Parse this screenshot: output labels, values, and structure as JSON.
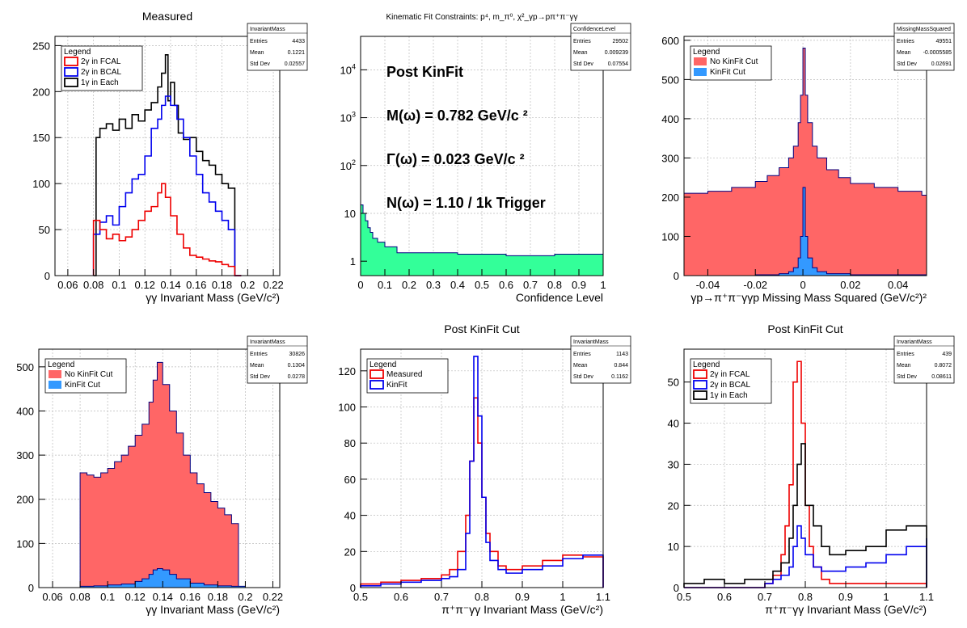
{
  "colors": {
    "red": "#ee0000",
    "blue": "#0000ee",
    "black": "#000000",
    "navy": "#000080",
    "salmon": "#ff6666",
    "azure": "#3399ff",
    "mint": "#33ff99",
    "grid": "#bbbbbb"
  },
  "chart_data": [
    {
      "id": "p1",
      "type": "line",
      "title": "Measured",
      "xlabel": "γγ Invariant Mass (GeV/c²)",
      "ylabel": "",
      "xlim": [
        0.05,
        0.225
      ],
      "ylim": [
        0,
        260
      ],
      "xticks": [
        0.06,
        0.08,
        0.1,
        0.12,
        0.14,
        0.16,
        0.18,
        0.2,
        0.22
      ],
      "yticks": [
        0,
        50,
        100,
        150,
        200,
        250
      ],
      "grid": true,
      "stats": {
        "name": "InvariantMass",
        "rows": [
          [
            "Entries",
            "4433"
          ],
          [
            "Mean",
            "0.1221"
          ],
          [
            "Std Dev",
            "0.02557"
          ]
        ]
      },
      "legend": {
        "title": "Legend",
        "placement": "top-left",
        "items": [
          {
            "label": "2γ in FCAL",
            "color": "red",
            "kind": "line"
          },
          {
            "label": "2γ in BCAL",
            "color": "blue",
            "kind": "line"
          },
          {
            "label": "1γ in Each",
            "color": "black",
            "kind": "line"
          }
        ]
      },
      "series": [
        {
          "name": "1γ in Each",
          "color": "black",
          "x": [
            0.08,
            0.082,
            0.085,
            0.09,
            0.095,
            0.1,
            0.105,
            0.11,
            0.115,
            0.12,
            0.125,
            0.13,
            0.133,
            0.136,
            0.138,
            0.14,
            0.143,
            0.146,
            0.15,
            0.155,
            0.16,
            0.165,
            0.17,
            0.175,
            0.18,
            0.185,
            0.19
          ],
          "values": [
            0,
            150,
            160,
            165,
            158,
            170,
            160,
            175,
            168,
            180,
            188,
            205,
            220,
            240,
            190,
            210,
            185,
            155,
            148,
            150,
            135,
            125,
            120,
            110,
            100,
            95,
            0
          ]
        },
        {
          "name": "2γ in BCAL",
          "color": "blue",
          "x": [
            0.08,
            0.085,
            0.09,
            0.095,
            0.1,
            0.105,
            0.11,
            0.115,
            0.12,
            0.125,
            0.13,
            0.133,
            0.136,
            0.14,
            0.145,
            0.15,
            0.155,
            0.16,
            0.165,
            0.17,
            0.175,
            0.18,
            0.185,
            0.19
          ],
          "values": [
            45,
            58,
            65,
            55,
            75,
            90,
            105,
            110,
            130,
            160,
            170,
            185,
            195,
            185,
            170,
            150,
            130,
            110,
            90,
            80,
            70,
            60,
            50,
            0
          ]
        },
        {
          "name": "2γ in FCAL",
          "color": "red",
          "x": [
            0.08,
            0.085,
            0.09,
            0.095,
            0.1,
            0.105,
            0.11,
            0.115,
            0.12,
            0.125,
            0.13,
            0.133,
            0.136,
            0.14,
            0.145,
            0.15,
            0.155,
            0.16,
            0.165,
            0.17,
            0.175,
            0.18,
            0.185,
            0.19
          ],
          "values": [
            60,
            50,
            40,
            45,
            38,
            42,
            50,
            60,
            70,
            75,
            90,
            100,
            85,
            65,
            45,
            30,
            22,
            20,
            18,
            16,
            15,
            12,
            10,
            0
          ]
        }
      ]
    },
    {
      "id": "p2",
      "type": "area",
      "title": "Kinematic Fit Constraints: p⁴, m_π⁰, χ²_γp→pπ⁺π⁻γγ",
      "xlabel": "Confidence Level",
      "ylabel": "",
      "log_y": true,
      "xlim": [
        0,
        1
      ],
      "ylim": [
        0.5,
        50000
      ],
      "xticks": [
        0,
        0.1,
        0.2,
        0.3,
        0.4,
        0.5,
        0.6,
        0.7,
        0.8,
        0.9,
        1
      ],
      "yticks": [
        1,
        10,
        100,
        1000,
        10000
      ],
      "grid": true,
      "stats": {
        "name": "ConfidenceLevel",
        "rows": [
          [
            "Entries",
            "29502"
          ],
          [
            "Mean",
            "0.009239"
          ],
          [
            "Std Dev",
            "0.07554"
          ]
        ]
      },
      "annotations": [
        "Post KinFit",
        "M(ω) = 0.782 GeV/c ²",
        "Γ(ω) = 0.023 GeV/c ²",
        "N(ω) = 1.10 / 1k Trigger"
      ],
      "series": [
        {
          "name": "",
          "fill": "mint",
          "color": "navy",
          "x": [
            0,
            0.01,
            0.02,
            0.03,
            0.04,
            0.05,
            0.07,
            0.1,
            0.15,
            0.2,
            0.3,
            0.4,
            0.5,
            0.6,
            0.7,
            0.8,
            0.9,
            1.0
          ],
          "values": [
            15,
            10,
            7,
            5,
            4,
            3,
            2.5,
            2,
            1.5,
            1.5,
            1.5,
            1.4,
            1.4,
            1.3,
            1.3,
            1.4,
            1.4,
            1.3
          ]
        }
      ]
    },
    {
      "id": "p3",
      "type": "area",
      "title": "",
      "xlabel": "γp→π⁺π⁻γγp Missing Mass Squared (GeV/c²)²",
      "ylabel": "",
      "xlim": [
        -0.05,
        0.052
      ],
      "ylim": [
        0,
        610
      ],
      "xticks": [
        -0.04,
        -0.02,
        0,
        0.02,
        0.04
      ],
      "yticks": [
        0,
        100,
        200,
        300,
        400,
        500,
        600
      ],
      "grid": true,
      "stats": {
        "name": "MissingMassSquared",
        "rows": [
          [
            "Entries",
            "49551"
          ],
          [
            "Mean",
            "-0.0005585"
          ],
          [
            "Std Dev",
            "0.02691"
          ]
        ]
      },
      "legend": {
        "title": "Legend",
        "placement": "top-left",
        "items": [
          {
            "label": "No KinFit Cut",
            "color": "salmon",
            "kind": "fill"
          },
          {
            "label": "KinFit Cut",
            "color": "azure",
            "kind": "fill"
          }
        ]
      },
      "series": [
        {
          "name": "No KinFit Cut",
          "fill": "salmon",
          "color": "navy",
          "x": [
            -0.05,
            -0.04,
            -0.03,
            -0.02,
            -0.015,
            -0.01,
            -0.006,
            -0.004,
            -0.002,
            -0.001,
            0,
            0.001,
            0.002,
            0.004,
            0.006,
            0.01,
            0.015,
            0.02,
            0.03,
            0.04,
            0.05,
            0.052
          ],
          "values": [
            210,
            215,
            225,
            240,
            255,
            275,
            300,
            330,
            390,
            460,
            580,
            460,
            390,
            330,
            300,
            270,
            250,
            235,
            225,
            215,
            205,
            205
          ]
        },
        {
          "name": "KinFit Cut",
          "fill": "azure",
          "color": "navy",
          "x": [
            -0.05,
            -0.02,
            -0.01,
            -0.006,
            -0.004,
            -0.002,
            -0.001,
            0,
            0.001,
            0.002,
            0.004,
            0.006,
            0.01,
            0.02,
            0.052
          ],
          "values": [
            0,
            2,
            5,
            10,
            20,
            45,
            100,
            225,
            100,
            45,
            20,
            10,
            5,
            2,
            0
          ]
        }
      ]
    },
    {
      "id": "p4",
      "type": "area",
      "title": "",
      "xlabel": "γγ Invariant Mass (GeV/c²)",
      "ylabel": "",
      "xlim": [
        0.05,
        0.225
      ],
      "ylim": [
        0,
        540
      ],
      "xticks": [
        0.06,
        0.08,
        0.1,
        0.12,
        0.14,
        0.16,
        0.18,
        0.2,
        0.22
      ],
      "yticks": [
        0,
        100,
        200,
        300,
        400,
        500
      ],
      "grid": true,
      "stats": {
        "name": "InvariantMass",
        "rows": [
          [
            "Entries",
            "30826"
          ],
          [
            "Mean",
            "0.1304"
          ],
          [
            "Std Dev",
            "0.0278"
          ]
        ]
      },
      "legend": {
        "title": "Legend",
        "placement": "top-left",
        "items": [
          {
            "label": "No KinFit Cut",
            "color": "salmon",
            "kind": "fill"
          },
          {
            "label": "KinFit Cut",
            "color": "azure",
            "kind": "fill"
          }
        ]
      },
      "series": [
        {
          "name": "No KinFit Cut",
          "fill": "salmon",
          "color": "navy",
          "x": [
            0.08,
            0.085,
            0.09,
            0.095,
            0.1,
            0.105,
            0.11,
            0.115,
            0.12,
            0.125,
            0.13,
            0.133,
            0.136,
            0.14,
            0.145,
            0.15,
            0.155,
            0.16,
            0.165,
            0.17,
            0.175,
            0.18,
            0.185,
            0.19
          ],
          "values": [
            260,
            255,
            250,
            260,
            270,
            285,
            300,
            320,
            345,
            370,
            420,
            470,
            510,
            460,
            400,
            350,
            300,
            260,
            235,
            215,
            195,
            180,
            165,
            145
          ]
        },
        {
          "name": "KinFit Cut",
          "fill": "azure",
          "color": "navy",
          "x": [
            0.08,
            0.09,
            0.1,
            0.11,
            0.12,
            0.125,
            0.13,
            0.133,
            0.136,
            0.14,
            0.145,
            0.15,
            0.16,
            0.17,
            0.18,
            0.19
          ],
          "values": [
            3,
            4,
            6,
            8,
            14,
            20,
            30,
            40,
            43,
            40,
            30,
            20,
            10,
            6,
            4,
            3
          ]
        }
      ]
    },
    {
      "id": "p5",
      "type": "line",
      "title": "Post KinFit Cut",
      "xlabel": "π⁺π⁻γγ Invariant Mass (GeV/c²)",
      "ylabel": "",
      "xlim": [
        0.5,
        1.1
      ],
      "ylim": [
        0,
        132
      ],
      "xticks": [
        0.5,
        0.6,
        0.7,
        0.8,
        0.9,
        1.0,
        1.1
      ],
      "xticklabels": [
        "0.5",
        "0.6",
        "0.7",
        "0.8",
        "0.9",
        "1",
        "1.1"
      ],
      "yticks": [
        0,
        20,
        40,
        60,
        80,
        100,
        120
      ],
      "grid": true,
      "stats": {
        "name": "InvariantMass",
        "rows": [
          [
            "Entries",
            "1143"
          ],
          [
            "Mean",
            "0.844"
          ],
          [
            "Std Dev",
            "0.1162"
          ]
        ]
      },
      "legend": {
        "title": "Legend",
        "placement": "top-left",
        "items": [
          {
            "label": "Measured",
            "color": "red",
            "kind": "line"
          },
          {
            "label": "KinFit",
            "color": "blue",
            "kind": "line"
          }
        ]
      },
      "series": [
        {
          "name": "Measured",
          "color": "red",
          "x": [
            0.5,
            0.55,
            0.6,
            0.65,
            0.7,
            0.72,
            0.74,
            0.76,
            0.77,
            0.78,
            0.79,
            0.8,
            0.81,
            0.82,
            0.84,
            0.86,
            0.9,
            0.95,
            1.0,
            1.05,
            1.1
          ],
          "values": [
            2,
            3,
            4,
            5,
            7,
            10,
            20,
            40,
            70,
            105,
            80,
            50,
            30,
            20,
            12,
            10,
            12,
            15,
            18,
            17,
            15
          ]
        },
        {
          "name": "KinFit",
          "color": "blue",
          "x": [
            0.5,
            0.55,
            0.6,
            0.65,
            0.7,
            0.72,
            0.74,
            0.76,
            0.77,
            0.78,
            0.79,
            0.8,
            0.81,
            0.82,
            0.84,
            0.86,
            0.9,
            0.95,
            1.0,
            1.05,
            1.1
          ],
          "values": [
            1,
            2,
            3,
            4,
            5,
            6,
            10,
            30,
            70,
            128,
            95,
            50,
            25,
            15,
            10,
            8,
            10,
            12,
            16,
            18,
            17
          ]
        }
      ]
    },
    {
      "id": "p6",
      "type": "line",
      "title": "Post KinFit Cut",
      "xlabel": "π⁺π⁻γγ Invariant Mass (GeV/c²)",
      "ylabel": "",
      "xlim": [
        0.5,
        1.1
      ],
      "ylim": [
        0,
        58
      ],
      "xticks": [
        0.5,
        0.6,
        0.7,
        0.8,
        0.9,
        1.0,
        1.1
      ],
      "xticklabels": [
        "0.5",
        "0.6",
        "0.7",
        "0.8",
        "0.9",
        "1",
        "1.1"
      ],
      "yticks": [
        0,
        10,
        20,
        30,
        40,
        50
      ],
      "grid": true,
      "stats": {
        "name": "InvariantMass",
        "rows": [
          [
            "Entries",
            "439"
          ],
          [
            "Mean",
            "0.8072"
          ],
          [
            "Std Dev",
            "0.08611"
          ]
        ]
      },
      "legend": {
        "title": "Legend",
        "placement": "top-left",
        "items": [
          {
            "label": "2γ in FCAL",
            "color": "red",
            "kind": "line"
          },
          {
            "label": "2γ in BCAL",
            "color": "blue",
            "kind": "line"
          },
          {
            "label": "1γ in Each",
            "color": "black",
            "kind": "line"
          }
        ]
      },
      "series": [
        {
          "name": "2γ in FCAL",
          "color": "red",
          "x": [
            0.5,
            0.6,
            0.7,
            0.72,
            0.74,
            0.75,
            0.76,
            0.77,
            0.78,
            0.79,
            0.8,
            0.81,
            0.82,
            0.84,
            0.86,
            0.9,
            1.0,
            1.1
          ],
          "values": [
            0,
            0,
            1,
            3,
            8,
            15,
            25,
            50,
            55,
            40,
            20,
            10,
            5,
            2,
            1,
            1,
            1,
            0
          ]
        },
        {
          "name": "2γ in BCAL",
          "color": "blue",
          "x": [
            0.5,
            0.6,
            0.7,
            0.72,
            0.74,
            0.76,
            0.77,
            0.78,
            0.79,
            0.8,
            0.82,
            0.84,
            0.86,
            0.9,
            0.95,
            1.0,
            1.05,
            1.1
          ],
          "values": [
            0,
            0,
            1,
            2,
            3,
            5,
            10,
            15,
            12,
            8,
            5,
            4,
            4,
            5,
            6,
            8,
            10,
            12
          ]
        },
        {
          "name": "1γ in Each",
          "color": "black",
          "x": [
            0.5,
            0.55,
            0.6,
            0.65,
            0.7,
            0.72,
            0.74,
            0.76,
            0.77,
            0.78,
            0.79,
            0.8,
            0.82,
            0.84,
            0.86,
            0.9,
            0.95,
            1.0,
            1.05,
            1.1
          ],
          "values": [
            1,
            2,
            1,
            2,
            2,
            4,
            6,
            12,
            20,
            30,
            35,
            20,
            15,
            10,
            8,
            9,
            10,
            14,
            15,
            10
          ]
        }
      ]
    }
  ]
}
